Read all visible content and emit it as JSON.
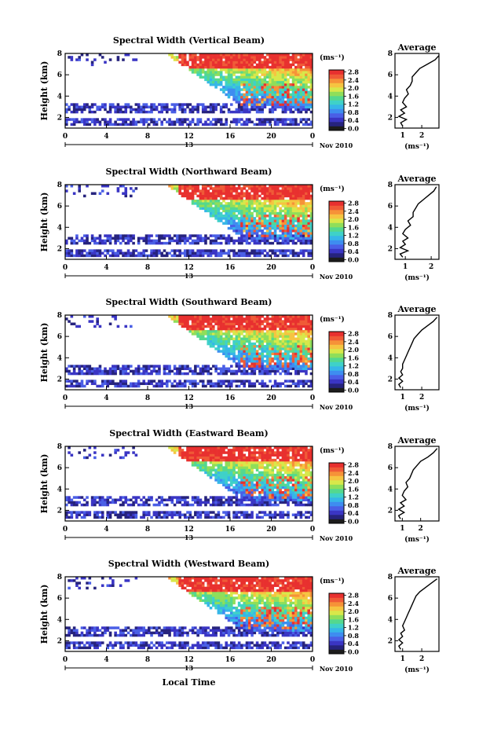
{
  "colorbar_label": "(ms⁻¹)",
  "date_label": "Nov 2010",
  "day_label": "13",
  "ylabel": "Height (km)",
  "xlabel": "Local Time",
  "avg_title": "Average",
  "avg_unit": "(ms⁻¹)",
  "colors": {
    "palette": [
      "#1c1c1c",
      "#26237d",
      "#3a35c4",
      "#4a5fe6",
      "#3e8df0",
      "#36b6e8",
      "#3fd1c8",
      "#54d88e",
      "#8fde5a",
      "#d8e84a",
      "#f6c441",
      "#f69238",
      "#f05a37",
      "#e8302f"
    ]
  },
  "chart_data": [
    {
      "type": "heatmap",
      "title": "Spectral Width (Vertical Beam)",
      "xlabel": "",
      "ylabel": "Height (km)",
      "x_ticks": [
        "0",
        "4",
        "8",
        "12",
        "16",
        "20",
        "0"
      ],
      "xlim": [
        0,
        24
      ],
      "y_ticks": [
        "2",
        "4",
        "6",
        "8"
      ],
      "ylim": [
        1,
        8
      ],
      "colorbar_ticks": [
        "0.0",
        "0.4",
        "0.8",
        "1.2",
        "1.6",
        "2.0",
        "2.4",
        "2.8"
      ],
      "clim": [
        0,
        3.0
      ],
      "average_profile": {
        "title": "Average",
        "x_ticks": [
          "1",
          "2"
        ],
        "xlim": [
          0.6,
          2.9
        ],
        "y_ticks": [
          "2",
          "4",
          "6",
          "8"
        ],
        "ylim": [
          1,
          8
        ],
        "height_km": [
          1.2,
          1.5,
          1.8,
          2.1,
          2.4,
          2.7,
          3.0,
          3.4,
          3.8,
          4.2,
          4.6,
          5.0,
          5.4,
          5.8,
          6.2,
          6.6,
          7.0,
          7.4,
          7.8
        ],
        "width_ms": [
          1.0,
          0.9,
          1.2,
          0.8,
          1.1,
          0.9,
          1.2,
          1.0,
          1.1,
          1.3,
          1.2,
          1.4,
          1.5,
          1.5,
          1.7,
          1.9,
          2.3,
          2.7,
          2.9
        ]
      }
    },
    {
      "type": "heatmap",
      "title": "Spectral Width (Northward Beam)",
      "xlabel": "",
      "ylabel": "Height (km)",
      "x_ticks": [
        "0",
        "4",
        "8",
        "12",
        "16",
        "20",
        "0"
      ],
      "xlim": [
        0,
        24
      ],
      "y_ticks": [
        "2",
        "4",
        "6",
        "8"
      ],
      "ylim": [
        1,
        8
      ],
      "colorbar_ticks": [
        "0.0",
        "0.4",
        "0.8",
        "1.2",
        "1.6",
        "2.0",
        "2.4",
        "2.8"
      ],
      "clim": [
        0,
        3.0
      ],
      "average_profile": {
        "title": "Average",
        "x_ticks": [
          "1",
          "2"
        ],
        "xlim": [
          0.6,
          2.3
        ],
        "y_ticks": [
          "2",
          "4",
          "6",
          "8"
        ],
        "ylim": [
          1,
          8
        ],
        "height_km": [
          1.2,
          1.5,
          1.8,
          2.1,
          2.4,
          2.7,
          3.0,
          3.4,
          3.8,
          4.2,
          4.6,
          5.0,
          5.4,
          5.8,
          6.2,
          6.6,
          7.0,
          7.4,
          7.8
        ],
        "width_ms": [
          0.9,
          0.8,
          1.1,
          0.8,
          1.0,
          0.9,
          1.1,
          0.9,
          1.0,
          1.2,
          1.1,
          1.3,
          1.3,
          1.4,
          1.5,
          1.7,
          1.9,
          2.1,
          2.2
        ]
      }
    },
    {
      "type": "heatmap",
      "title": "Spectral Width (Southward Beam)",
      "xlabel": "",
      "ylabel": "Height (km)",
      "x_ticks": [
        "0",
        "4",
        "8",
        "12",
        "16",
        "20",
        "0"
      ],
      "xlim": [
        0,
        24
      ],
      "y_ticks": [
        "2",
        "4",
        "6",
        "8"
      ],
      "ylim": [
        1,
        8
      ],
      "colorbar_ticks": [
        "0.0",
        "0.4",
        "0.8",
        "1.2",
        "1.6",
        "2.0",
        "2.4",
        "2.8"
      ],
      "clim": [
        0,
        3.0
      ],
      "average_profile": {
        "title": "Average",
        "x_ticks": [
          "1",
          "2"
        ],
        "xlim": [
          0.6,
          2.9
        ],
        "y_ticks": [
          "2",
          "4",
          "6",
          "8"
        ],
        "ylim": [
          1,
          8
        ],
        "height_km": [
          1.2,
          1.5,
          1.8,
          2.1,
          2.4,
          2.7,
          3.0,
          3.4,
          3.8,
          4.2,
          4.6,
          5.0,
          5.4,
          5.8,
          6.2,
          6.6,
          7.0,
          7.4,
          7.8
        ],
        "width_ms": [
          0.9,
          0.8,
          1.0,
          0.8,
          1.0,
          0.9,
          1.0,
          1.0,
          1.1,
          1.2,
          1.3,
          1.4,
          1.5,
          1.6,
          1.8,
          2.0,
          2.3,
          2.6,
          2.8
        ]
      }
    },
    {
      "type": "heatmap",
      "title": "Spectral Width (Eastward Beam)",
      "xlabel": "",
      "ylabel": "Height (km)",
      "x_ticks": [
        "0",
        "4",
        "8",
        "12",
        "16",
        "20",
        "0"
      ],
      "xlim": [
        0,
        24
      ],
      "y_ticks": [
        "2",
        "4",
        "6",
        "8"
      ],
      "ylim": [
        1,
        8
      ],
      "colorbar_ticks": [
        "0.0",
        "0.4",
        "0.8",
        "1.2",
        "1.6",
        "2.0",
        "2.4",
        "2.8"
      ],
      "clim": [
        0,
        3.0
      ],
      "average_profile": {
        "title": "Average",
        "x_ticks": [
          "1",
          "2"
        ],
        "xlim": [
          0.6,
          3.0
        ],
        "y_ticks": [
          "2",
          "4",
          "6",
          "8"
        ],
        "ylim": [
          1,
          8
        ],
        "height_km": [
          1.2,
          1.5,
          1.8,
          2.1,
          2.4,
          2.7,
          3.0,
          3.4,
          3.8,
          4.2,
          4.6,
          5.0,
          5.4,
          5.8,
          6.2,
          6.6,
          7.0,
          7.4,
          7.8
        ],
        "width_ms": [
          0.9,
          0.8,
          1.1,
          0.8,
          1.1,
          0.9,
          1.2,
          1.0,
          1.1,
          1.3,
          1.2,
          1.4,
          1.5,
          1.6,
          1.8,
          2.0,
          2.4,
          2.7,
          2.9
        ]
      }
    },
    {
      "type": "heatmap",
      "title": "Spectral Width (Westward Beam)",
      "xlabel": "Local Time",
      "ylabel": "Height (km)",
      "x_ticks": [
        "0",
        "4",
        "8",
        "12",
        "16",
        "20",
        "0"
      ],
      "xlim": [
        0,
        24
      ],
      "y_ticks": [
        "2",
        "4",
        "6",
        "8"
      ],
      "ylim": [
        1,
        8
      ],
      "colorbar_ticks": [
        "0.0",
        "0.4",
        "0.8",
        "1.2",
        "1.6",
        "2.0",
        "2.4",
        "2.8"
      ],
      "clim": [
        0,
        3.0
      ],
      "average_profile": {
        "title": "Average",
        "x_ticks": [
          "1",
          "2"
        ],
        "xlim": [
          0.6,
          2.9
        ],
        "y_ticks": [
          "2",
          "4",
          "6",
          "8"
        ],
        "ylim": [
          1,
          8
        ],
        "height_km": [
          1.2,
          1.5,
          1.8,
          2.1,
          2.4,
          2.7,
          3.0,
          3.4,
          3.8,
          4.2,
          4.6,
          5.0,
          5.4,
          5.8,
          6.2,
          6.6,
          7.0,
          7.4,
          7.8
        ],
        "width_ms": [
          0.9,
          0.8,
          1.0,
          0.8,
          1.0,
          0.9,
          1.1,
          1.0,
          1.1,
          1.2,
          1.3,
          1.4,
          1.5,
          1.6,
          1.7,
          1.9,
          2.2,
          2.5,
          2.8
        ]
      }
    }
  ]
}
